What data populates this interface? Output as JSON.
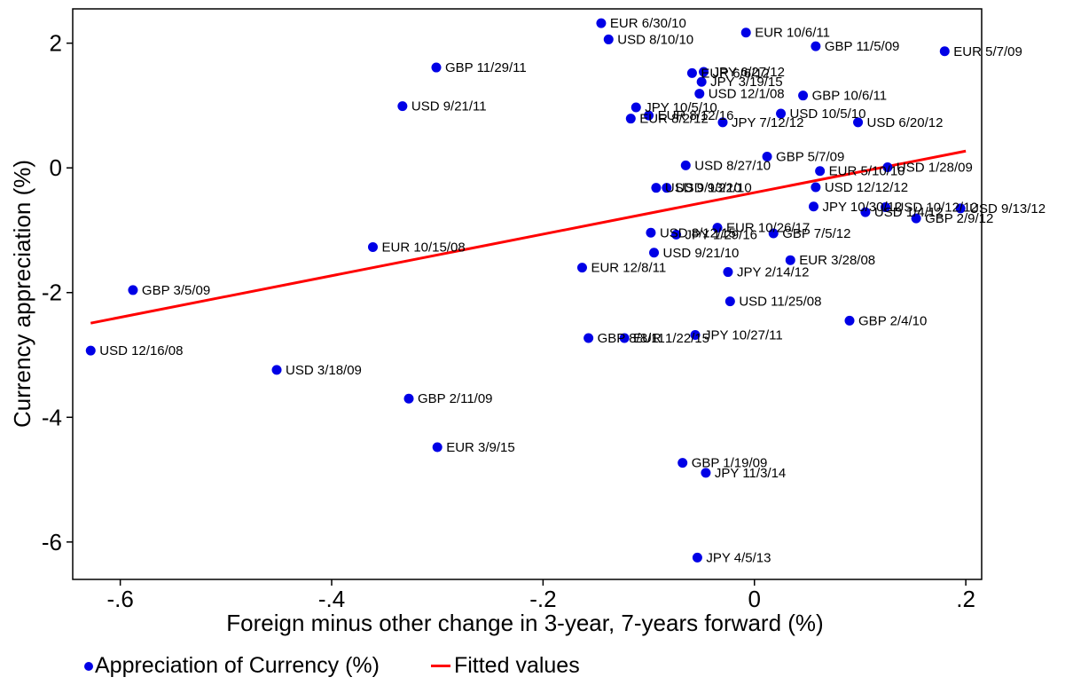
{
  "chart_data": {
    "type": "scatter",
    "xlabel": "Foreign minus other change in 3-year, 7-years forward (%)",
    "ylabel": "Currency appreciation (%)",
    "xlim": [
      -0.645,
      0.215
    ],
    "ylim": [
      -6.6,
      2.55
    ],
    "xticks": [
      -0.6,
      -0.4,
      -0.2,
      0,
      0.2
    ],
    "xtick_labels": [
      "-.6",
      "-.4",
      "-.2",
      "0",
      ".2"
    ],
    "yticks": [
      -6,
      -4,
      -2,
      0,
      2
    ],
    "ytick_labels": [
      "-6",
      "-4",
      "-2",
      "0",
      "2"
    ],
    "grid": false,
    "legend_position": "bottom",
    "colors": {
      "points": "#0000e6",
      "fit": "#ff0000"
    },
    "series": [
      {
        "name": "Appreciation of Currency (%)",
        "kind": "scatter",
        "points": [
          {
            "label": "EUR 6/30/10",
            "x": -0.145,
            "y": 2.32
          },
          {
            "label": "USD 8/10/10",
            "x": -0.138,
            "y": 2.06
          },
          {
            "label": "EUR 10/6/11",
            "x": -0.008,
            "y": 2.17
          },
          {
            "label": "GBP 11/5/09",
            "x": 0.058,
            "y": 1.95
          },
          {
            "label": "EUR 5/7/09",
            "x": 0.18,
            "y": 1.87
          },
          {
            "label": "GBP 11/29/11",
            "x": -0.301,
            "y": 1.61
          },
          {
            "label": "EUR 6/6/12",
            "x": -0.059,
            "y": 1.52
          },
          {
            "label": "JPY 6/27/12",
            "x": -0.048,
            "y": 1.54
          },
          {
            "label": "JPY 3/19/15",
            "x": -0.05,
            "y": 1.38
          },
          {
            "label": "USD 12/1/08",
            "x": -0.052,
            "y": 1.19
          },
          {
            "label": "GBP 10/6/11",
            "x": 0.046,
            "y": 1.16
          },
          {
            "label": "USD 9/21/11",
            "x": -0.333,
            "y": 0.99
          },
          {
            "label": "JPY 10/5/10",
            "x": -0.112,
            "y": 0.97
          },
          {
            "label": "EUR 8/12/16",
            "x": -0.1,
            "y": 0.84
          },
          {
            "label": "EUR 8/2/12",
            "x": -0.117,
            "y": 0.79
          },
          {
            "label": "JPY 7/12/12",
            "x": -0.03,
            "y": 0.73
          },
          {
            "label": "USD 10/5/10",
            "x": 0.025,
            "y": 0.87
          },
          {
            "label": "USD 6/20/12",
            "x": 0.098,
            "y": 0.73
          },
          {
            "label": "GBP 5/7/09",
            "x": 0.012,
            "y": 0.18
          },
          {
            "label": "USD 8/27/10",
            "x": -0.065,
            "y": 0.04
          },
          {
            "label": "EUR 5/10/10",
            "x": 0.062,
            "y": -0.05
          },
          {
            "label": "USD 1/28/09",
            "x": 0.126,
            "y": 0.01
          },
          {
            "label": "USD 9/13/10",
            "x": -0.093,
            "y": -0.32
          },
          {
            "label": "USD 9/22/10",
            "x": -0.083,
            "y": -0.32
          },
          {
            "label": "USD 12/12/12",
            "x": 0.058,
            "y": -0.31
          },
          {
            "label": "JPY 10/30/12",
            "x": 0.056,
            "y": -0.62
          },
          {
            "label": "USD 10/12/12",
            "x": 0.124,
            "y": -0.63
          },
          {
            "label": "USD 9/13/12",
            "x": 0.195,
            "y": -0.65
          },
          {
            "label": "USD 1/4/12",
            "x": 0.105,
            "y": -0.71
          },
          {
            "label": "GBP 2/9/12",
            "x": 0.153,
            "y": -0.81
          },
          {
            "label": "EUR 10/26/17",
            "x": -0.035,
            "y": -0.96
          },
          {
            "label": "USD 8/12/15",
            "x": -0.098,
            "y": -1.04
          },
          {
            "label": "JPY 1/29/16",
            "x": -0.074,
            "y": -1.07
          },
          {
            "label": "GBP 7/5/12",
            "x": 0.018,
            "y": -1.05
          },
          {
            "label": "EUR 10/15/08",
            "x": -0.361,
            "y": -1.27
          },
          {
            "label": "USD 9/21/10",
            "x": -0.095,
            "y": -1.36
          },
          {
            "label": "EUR 3/28/08",
            "x": 0.034,
            "y": -1.48
          },
          {
            "label": "EUR 12/8/11",
            "x": -0.163,
            "y": -1.6
          },
          {
            "label": "JPY 2/14/12",
            "x": -0.025,
            "y": -1.67
          },
          {
            "label": "GBP 3/5/09",
            "x": -0.588,
            "y": -1.96
          },
          {
            "label": "USD 11/25/08",
            "x": -0.023,
            "y": -2.14
          },
          {
            "label": "GBP 2/4/10",
            "x": 0.09,
            "y": -2.45
          },
          {
            "label": "GBP 8/8/11",
            "x": -0.157,
            "y": -2.73
          },
          {
            "label": "EUR 1/22/15",
            "x": -0.123,
            "y": -2.73
          },
          {
            "label": "JPY 10/27/11",
            "x": -0.056,
            "y": -2.68
          },
          {
            "label": "USD 12/16/08",
            "x": -0.628,
            "y": -2.93
          },
          {
            "label": "USD 3/18/09",
            "x": -0.452,
            "y": -3.24
          },
          {
            "label": "GBP 2/11/09",
            "x": -0.327,
            "y": -3.7
          },
          {
            "label": "EUR 3/9/15",
            "x": -0.3,
            "y": -4.48
          },
          {
            "label": "GBP 1/19/09",
            "x": -0.068,
            "y": -4.73
          },
          {
            "label": "JPY 11/3/14",
            "x": -0.046,
            "y": -4.89
          },
          {
            "label": "JPY 4/5/13",
            "x": -0.054,
            "y": -6.25
          }
        ]
      },
      {
        "name": "Fitted values",
        "kind": "line",
        "x": [
          -0.628,
          0.2
        ],
        "y": [
          -2.49,
          0.27
        ]
      }
    ]
  },
  "legend": {
    "items": [
      {
        "label": "Appreciation of Currency (%)",
        "marker": "dot",
        "color": "#0000e6"
      },
      {
        "label": "Fitted values",
        "marker": "line",
        "color": "#ff0000"
      }
    ]
  }
}
